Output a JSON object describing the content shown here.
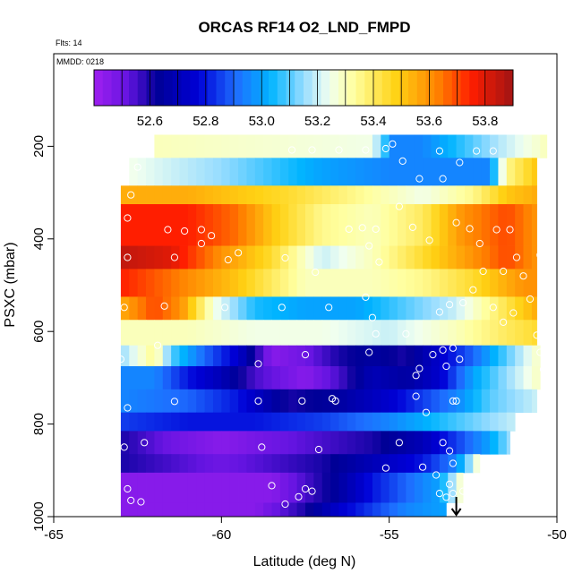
{
  "chart_data": {
    "type": "heatmap",
    "title": "ORCAS RF14 O2_LND_FMPD",
    "note_top": "Flts: 14",
    "note_inner": "MMDD: 0218",
    "xlabel": "Latitude (deg N)",
    "ylabel": "PSXC (mbar)",
    "xlim": [
      -65,
      -50
    ],
    "ylim": [
      1000,
      0
    ],
    "x_ticks": [
      -65,
      -60,
      -55,
      -50
    ],
    "y_ticks": [
      200,
      400,
      600,
      800,
      1000
    ],
    "colorbar": {
      "range": [
        52.4,
        53.9
      ],
      "ticks": [
        52.6,
        52.8,
        53.0,
        53.2,
        53.4,
        53.6,
        53.8
      ]
    },
    "x_grid": [
      -63.0,
      -62.75,
      -62.5,
      -62.25,
      -62.0,
      -61.75,
      -61.5,
      -61.25,
      -61.0,
      -60.75,
      -60.5,
      -60.25,
      -60.0,
      -59.75,
      -59.5,
      -59.25,
      -59.0,
      -58.75,
      -58.5,
      -58.25,
      -58.0,
      -57.75,
      -57.5,
      -57.25,
      -57.0,
      -56.75,
      -56.5,
      -56.25,
      -56.0,
      -55.75,
      -55.5,
      -55.25,
      -55.0,
      -54.75,
      -54.5,
      -54.25,
      -54.0,
      -53.75,
      -53.5,
      -53.25,
      -53.0,
      -52.75,
      -52.5,
      -52.25,
      -52.0,
      -51.75,
      -51.5,
      -51.25,
      -51.0,
      -50.75,
      -50.5,
      -50.25
    ],
    "cell_width": 0.25,
    "layers": [
      {
        "p_top": 175,
        "p_bot": 225,
        "x_min": -62.0,
        "x_max": -50.3,
        "value_knots": [
          [
            -62.0,
            53.3
          ],
          [
            -55.5,
            53.25
          ],
          [
            -54.9,
            52.95
          ],
          [
            -54.0,
            52.95
          ],
          [
            -53.0,
            53.05
          ],
          [
            -52.5,
            53.1
          ],
          [
            -51.5,
            53.2
          ],
          [
            -50.3,
            53.3
          ]
        ]
      },
      {
        "p_top": 225,
        "p_bot": 285,
        "x_min": -62.8,
        "x_max": -50.6,
        "value_knots": [
          [
            -62.8,
            53.25
          ],
          [
            -60.0,
            53.15
          ],
          [
            -57.0,
            53.0
          ],
          [
            -55.0,
            52.95
          ],
          [
            -52.0,
            52.95
          ],
          [
            -51.5,
            53.35
          ],
          [
            -50.6,
            53.5
          ]
        ]
      },
      {
        "p_top": 285,
        "p_bot": 325,
        "x_min": -63.0,
        "x_max": -50.6,
        "value_knots": [
          [
            -63.0,
            53.55
          ],
          [
            -61.0,
            53.55
          ],
          [
            -58.0,
            53.45
          ],
          [
            -56.0,
            53.35
          ],
          [
            -54.0,
            53.25
          ],
          [
            -52.5,
            53.35
          ],
          [
            -51.5,
            53.5
          ],
          [
            -50.6,
            53.55
          ]
        ]
      },
      {
        "p_top": 325,
        "p_bot": 415,
        "x_min": -63.0,
        "x_max": -50.6,
        "value_knots": [
          [
            -63.0,
            53.75
          ],
          [
            -61.0,
            53.75
          ],
          [
            -59.5,
            53.65
          ],
          [
            -58.5,
            53.5
          ],
          [
            -57.0,
            53.35
          ],
          [
            -55.5,
            53.3
          ],
          [
            -54.0,
            53.4
          ],
          [
            -52.8,
            53.6
          ],
          [
            -51.5,
            53.7
          ],
          [
            -50.6,
            53.6
          ]
        ]
      },
      {
        "p_top": 415,
        "p_bot": 465,
        "x_min": -63.0,
        "x_max": -50.6,
        "value_knots": [
          [
            -63.0,
            53.85
          ],
          [
            -61.5,
            53.8
          ],
          [
            -60.0,
            53.6
          ],
          [
            -58.5,
            53.45
          ],
          [
            -57.0,
            53.2
          ],
          [
            -55.5,
            53.3
          ],
          [
            -54.0,
            53.45
          ],
          [
            -52.5,
            53.6
          ],
          [
            -51.5,
            53.7
          ],
          [
            -50.6,
            53.6
          ]
        ]
      },
      {
        "p_top": 465,
        "p_bot": 525,
        "x_min": -63.0,
        "x_max": -50.6,
        "value_knots": [
          [
            -63.0,
            53.75
          ],
          [
            -61.5,
            53.65
          ],
          [
            -59.5,
            53.5
          ],
          [
            -57.5,
            53.3
          ],
          [
            -55.5,
            53.3
          ],
          [
            -54.0,
            53.35
          ],
          [
            -52.5,
            53.45
          ],
          [
            -51.0,
            53.6
          ],
          [
            -50.6,
            53.6
          ]
        ]
      },
      {
        "p_top": 525,
        "p_bot": 575,
        "x_min": -63.0,
        "x_max": -50.6,
        "value_knots": [
          [
            -63.0,
            53.55
          ],
          [
            -62.0,
            53.7
          ],
          [
            -61.2,
            53.6
          ],
          [
            -60.2,
            53.25
          ],
          [
            -59.0,
            53.05
          ],
          [
            -57.5,
            53.0
          ],
          [
            -56.0,
            53.0
          ],
          [
            -54.5,
            53.1
          ],
          [
            -53.0,
            53.2
          ],
          [
            -52.0,
            53.35
          ],
          [
            -50.6,
            53.55
          ]
        ]
      },
      {
        "p_top": 575,
        "p_bot": 630,
        "x_min": -63.0,
        "x_max": -50.6,
        "value_knots": [
          [
            -63.0,
            53.3
          ],
          [
            -61.0,
            53.3
          ],
          [
            -59.0,
            53.25
          ],
          [
            -57.0,
            53.25
          ],
          [
            -55.0,
            53.2
          ],
          [
            -53.0,
            53.3
          ],
          [
            -51.5,
            53.4
          ],
          [
            -50.6,
            53.45
          ]
        ]
      },
      {
        "p_top": 630,
        "p_bot": 675,
        "x_min": -63.0,
        "x_max": -50.5,
        "value_knots": [
          [
            -63.0,
            53.15
          ],
          [
            -62.0,
            53.35
          ],
          [
            -61.5,
            53.1
          ],
          [
            -60.5,
            52.9
          ],
          [
            -59.5,
            52.75
          ],
          [
            -58.5,
            52.45
          ],
          [
            -57.5,
            52.5
          ],
          [
            -56.5,
            52.6
          ],
          [
            -55.5,
            52.65
          ],
          [
            -54.5,
            52.6
          ],
          [
            -53.5,
            52.75
          ],
          [
            -52.5,
            52.9
          ],
          [
            -51.5,
            53.1
          ],
          [
            -50.5,
            53.3
          ]
        ]
      },
      {
        "p_top": 675,
        "p_bot": 725,
        "x_min": -63.0,
        "x_max": -50.5,
        "value_knots": [
          [
            -63.0,
            52.95
          ],
          [
            -62.0,
            52.95
          ],
          [
            -61.0,
            52.8
          ],
          [
            -60.0,
            52.7
          ],
          [
            -59.0,
            52.55
          ],
          [
            -57.5,
            52.45
          ],
          [
            -56.5,
            52.55
          ],
          [
            -55.5,
            52.7
          ],
          [
            -54.5,
            52.65
          ],
          [
            -53.5,
            52.75
          ],
          [
            -52.5,
            53.0
          ],
          [
            -51.5,
            53.15
          ],
          [
            -50.5,
            53.3
          ]
        ]
      },
      {
        "p_top": 725,
        "p_bot": 775,
        "x_min": -63.0,
        "x_max": -50.6,
        "value_knots": [
          [
            -63.0,
            52.95
          ],
          [
            -61.0,
            52.9
          ],
          [
            -59.5,
            52.8
          ],
          [
            -58.0,
            52.6
          ],
          [
            -56.5,
            52.65
          ],
          [
            -55.0,
            52.75
          ],
          [
            -54.0,
            52.85
          ],
          [
            -53.0,
            52.95
          ],
          [
            -52.0,
            53.1
          ],
          [
            -50.6,
            53.2
          ]
        ]
      },
      {
        "p_top": 775,
        "p_bot": 815,
        "x_min": -63.0,
        "x_max": -51.2,
        "value_knots": [
          [
            -63.0,
            52.85
          ],
          [
            -61.0,
            52.8
          ],
          [
            -59.0,
            52.8
          ],
          [
            -57.0,
            52.85
          ],
          [
            -55.0,
            52.95
          ],
          [
            -53.5,
            53.05
          ],
          [
            -52.0,
            53.15
          ],
          [
            -51.2,
            53.2
          ]
        ]
      },
      {
        "p_top": 815,
        "p_bot": 865,
        "x_min": -63.0,
        "x_max": -51.4,
        "value_knots": [
          [
            -63.0,
            52.6
          ],
          [
            -61.5,
            52.5
          ],
          [
            -60.0,
            52.45
          ],
          [
            -58.5,
            52.5
          ],
          [
            -57.0,
            52.55
          ],
          [
            -55.5,
            52.6
          ],
          [
            -54.0,
            52.7
          ],
          [
            -53.0,
            52.85
          ],
          [
            -52.0,
            53.0
          ],
          [
            -51.4,
            53.15
          ]
        ]
      },
      {
        "p_top": 865,
        "p_bot": 905,
        "x_min": -63.0,
        "x_max": -52.3,
        "value_knots": [
          [
            -63.0,
            52.6
          ],
          [
            -61.5,
            52.55
          ],
          [
            -60.0,
            52.5
          ],
          [
            -58.5,
            52.55
          ],
          [
            -57.0,
            52.6
          ],
          [
            -55.5,
            52.7
          ],
          [
            -54.0,
            52.8
          ],
          [
            -53.0,
            52.95
          ],
          [
            -52.3,
            53.3
          ]
        ]
      },
      {
        "p_top": 905,
        "p_bot": 970,
        "x_min": -63.0,
        "x_max": -52.8,
        "value_knots": [
          [
            -63.0,
            52.45
          ],
          [
            -61.0,
            52.45
          ],
          [
            -58.5,
            52.45
          ],
          [
            -57.5,
            52.55
          ],
          [
            -56.5,
            52.65
          ],
          [
            -55.5,
            52.8
          ],
          [
            -54.5,
            52.9
          ],
          [
            -53.5,
            53.0
          ],
          [
            -52.8,
            53.3
          ]
        ]
      },
      {
        "p_top": 970,
        "p_bot": 1000,
        "x_min": -63.0,
        "x_max": -53.3,
        "value_knots": [
          [
            -63.0,
            52.45
          ],
          [
            -59.0,
            52.45
          ],
          [
            -57.5,
            52.6
          ],
          [
            -56.5,
            52.75
          ],
          [
            -55.5,
            52.85
          ],
          [
            -54.5,
            52.95
          ],
          [
            -53.3,
            53.0
          ]
        ]
      }
    ],
    "sample_points": [
      [
        -62.7,
        305
      ],
      [
        -62.8,
        355
      ],
      [
        -62.5,
        245
      ],
      [
        -61.1,
        383
      ],
      [
        -60.6,
        380
      ],
      [
        -60.3,
        393
      ],
      [
        -61.6,
        380
      ],
      [
        -62.8,
        440
      ],
      [
        -61.4,
        440
      ],
      [
        -59.8,
        445
      ],
      [
        -58.1,
        441
      ],
      [
        -57.2,
        472
      ],
      [
        -56.2,
        379
      ],
      [
        -55.8,
        376
      ],
      [
        -55.4,
        379
      ],
      [
        -55.6,
        415
      ],
      [
        -55.3,
        450
      ],
      [
        -54.3,
        375
      ],
      [
        -53.8,
        403
      ],
      [
        -53.0,
        365
      ],
      [
        -52.6,
        378
      ],
      [
        -52.3,
        410
      ],
      [
        -51.8,
        380
      ],
      [
        -51.4,
        380
      ],
      [
        -51.6,
        470
      ],
      [
        -51.2,
        440
      ],
      [
        -51.0,
        480
      ],
      [
        -50.8,
        530
      ],
      [
        -50.5,
        435
      ],
      [
        -55.5,
        570
      ],
      [
        -53.5,
        558
      ],
      [
        -53.2,
        542
      ],
      [
        -52.8,
        538
      ],
      [
        -52.5,
        510
      ],
      [
        -52.2,
        470
      ],
      [
        -54.7,
        330
      ],
      [
        -54.1,
        270
      ],
      [
        -53.4,
        270
      ],
      [
        -55.1,
        205
      ],
      [
        -54.9,
        195
      ],
      [
        -54.6,
        232
      ],
      [
        -53.5,
        210
      ],
      [
        -52.4,
        210
      ],
      [
        -51.9,
        210
      ],
      [
        -57.9,
        208
      ],
      [
        -57.3,
        208
      ],
      [
        -56.5,
        208
      ],
      [
        -55.7,
        208
      ],
      [
        -52.9,
        235
      ],
      [
        -62.9,
        548
      ],
      [
        -61.7,
        545
      ],
      [
        -59.9,
        548
      ],
      [
        -58.2,
        548
      ],
      [
        -56.8,
        548
      ],
      [
        -55.7,
        526
      ],
      [
        -51.9,
        548
      ],
      [
        -51.6,
        580
      ],
      [
        -51.3,
        560
      ],
      [
        -50.6,
        608
      ],
      [
        -50.4,
        682
      ],
      [
        -50.5,
        645
      ],
      [
        -60.6,
        410
      ],
      [
        -59.5,
        430
      ],
      [
        -61.9,
        630
      ],
      [
        -58.9,
        670
      ],
      [
        -58.9,
        750
      ],
      [
        -57.6,
        750
      ],
      [
        -56.6,
        750
      ],
      [
        -56.7,
        745
      ],
      [
        -57.5,
        650
      ],
      [
        -55.6,
        645
      ],
      [
        -55.4,
        605
      ],
      [
        -54.2,
        695
      ],
      [
        -54.1,
        680
      ],
      [
        -53.7,
        650
      ],
      [
        -53.4,
        640
      ],
      [
        -53.3,
        675
      ],
      [
        -53.1,
        636
      ],
      [
        -52.9,
        660
      ],
      [
        -54.5,
        605
      ],
      [
        -63.0,
        660
      ],
      [
        -62.8,
        765
      ],
      [
        -62.9,
        850
      ],
      [
        -62.3,
        840
      ],
      [
        -61.4,
        751
      ],
      [
        -58.8,
        850
      ],
      [
        -57.1,
        855
      ],
      [
        -54.7,
        840
      ],
      [
        -54.2,
        740
      ],
      [
        -53.9,
        775
      ],
      [
        -53.1,
        750
      ],
      [
        -53.0,
        750
      ],
      [
        -53.4,
        840
      ],
      [
        -53.2,
        858
      ],
      [
        -53.1,
        885
      ],
      [
        -54.0,
        893
      ],
      [
        -53.6,
        910
      ],
      [
        -55.1,
        895
      ],
      [
        -62.8,
        940
      ],
      [
        -62.7,
        965
      ],
      [
        -62.4,
        968
      ],
      [
        -58.5,
        933
      ],
      [
        -57.7,
        957
      ],
      [
        -58.1,
        973
      ],
      [
        -57.5,
        940
      ],
      [
        -53.5,
        950
      ],
      [
        -53.3,
        958
      ],
      [
        -53.1,
        950
      ],
      [
        -52.8,
        945
      ],
      [
        -53.2,
        930
      ],
      [
        -57.3,
        945
      ]
    ],
    "marker_arrow_x": -53.0
  }
}
